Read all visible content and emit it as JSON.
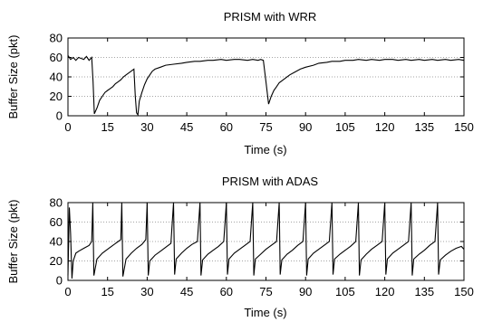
{
  "chart_data": [
    {
      "type": "line",
      "title": "PRISM with WRR",
      "xlabel": "Time (s)",
      "ylabel": "Buffer Size (pkt)",
      "xlim": [
        0,
        150
      ],
      "ylim": [
        0,
        80
      ],
      "xticks": [
        0,
        15,
        30,
        45,
        60,
        75,
        90,
        105,
        120,
        135,
        150
      ],
      "yticks": [
        0,
        20,
        40,
        60,
        80
      ],
      "grid": "horizontal dotted at y ticks",
      "legend": "none",
      "line_color": "#000000",
      "series": [
        {
          "x": [
            0,
            1,
            2,
            3,
            4,
            5,
            6,
            7,
            8,
            9,
            9.5,
            10,
            11,
            12,
            13,
            14,
            15,
            16,
            17,
            18,
            19,
            20,
            21,
            22,
            23,
            24,
            25,
            25.5,
            26,
            26.5,
            27,
            28,
            29,
            30,
            31,
            32,
            33,
            35,
            37,
            40,
            43,
            45,
            48,
            50,
            53,
            55,
            58,
            60,
            63,
            65,
            68,
            70,
            72,
            73,
            74,
            75,
            76,
            77,
            78,
            79,
            80,
            82,
            84,
            86,
            88,
            90,
            93,
            95,
            98,
            100,
            103,
            105,
            108,
            110,
            113,
            115,
            118,
            120,
            123,
            125,
            128,
            130,
            133,
            135,
            138,
            140,
            143,
            145,
            148,
            150
          ],
          "y": [
            62,
            58,
            60,
            57,
            60,
            59,
            58,
            61,
            57,
            60,
            35,
            2,
            8,
            16,
            20,
            24,
            26,
            28,
            30,
            33,
            35,
            37,
            40,
            42,
            44,
            46,
            48,
            20,
            3,
            1,
            15,
            24,
            32,
            38,
            42,
            46,
            48,
            50,
            52,
            53,
            54,
            55,
            56,
            56,
            57,
            57,
            58,
            57,
            58,
            58,
            57,
            58,
            57,
            58,
            57,
            35,
            12,
            20,
            26,
            30,
            34,
            38,
            42,
            45,
            48,
            50,
            52,
            54,
            55,
            56,
            56,
            57,
            57,
            58,
            57,
            58,
            57,
            58,
            58,
            57,
            58,
            57,
            58,
            57,
            58,
            57,
            58,
            57,
            58,
            57
          ]
        }
      ]
    },
    {
      "type": "line",
      "title": "PRISM with ADAS",
      "xlabel": "Time (s)",
      "ylabel": "Buffer Size (pkt)",
      "xlim": [
        0,
        150
      ],
      "ylim": [
        0,
        80
      ],
      "xticks": [
        0,
        15,
        30,
        45,
        60,
        75,
        90,
        105,
        120,
        135,
        150
      ],
      "yticks": [
        0,
        20,
        40,
        60,
        80
      ],
      "grid": "horizontal dotted at y ticks",
      "legend": "none",
      "line_color": "#000000",
      "series": [
        {
          "x": [
            0,
            0.5,
            1,
            1.5,
            2,
            3,
            4,
            6,
            8,
            9,
            9.4,
            9.8,
            11,
            13,
            15,
            17,
            19,
            20,
            20.4,
            20.8,
            22,
            24,
            26,
            28,
            29.5,
            30,
            30.4,
            31,
            33,
            35,
            37,
            39,
            40,
            40.4,
            41,
            43,
            45,
            47,
            49,
            50,
            50.4,
            51,
            53,
            55,
            57,
            59,
            60,
            60.4,
            61,
            63,
            65,
            67,
            69,
            70,
            70.4,
            71,
            73,
            75,
            77,
            79,
            80,
            80.4,
            81,
            83,
            85,
            87,
            89,
            90,
            90.4,
            91,
            93,
            95,
            97,
            99,
            100,
            100.4,
            101,
            103,
            105,
            107,
            109,
            110,
            110.4,
            111,
            113,
            115,
            117,
            119,
            120,
            120.4,
            121,
            123,
            125,
            127,
            129,
            130,
            130.4,
            131,
            133,
            135,
            137,
            139,
            140,
            140.4,
            141,
            143,
            145,
            147,
            149,
            150
          ],
          "y": [
            5,
            75,
            48,
            2,
            20,
            28,
            30,
            33,
            36,
            40,
            80,
            5,
            22,
            28,
            32,
            36,
            40,
            42,
            80,
            4,
            22,
            28,
            33,
            37,
            42,
            80,
            5,
            20,
            26,
            30,
            34,
            38,
            80,
            6,
            22,
            28,
            33,
            37,
            40,
            80,
            5,
            21,
            27,
            31,
            35,
            40,
            80,
            6,
            22,
            28,
            32,
            36,
            40,
            80,
            5,
            22,
            27,
            32,
            36,
            40,
            80,
            6,
            21,
            27,
            31,
            36,
            40,
            80,
            5,
            22,
            28,
            32,
            36,
            40,
            80,
            6,
            22,
            27,
            31,
            35,
            40,
            80,
            5,
            21,
            27,
            32,
            36,
            40,
            80,
            6,
            22,
            28,
            32,
            36,
            40,
            80,
            5,
            22,
            27,
            31,
            36,
            40,
            80,
            6,
            21,
            26,
            30,
            33,
            35,
            32
          ]
        }
      ]
    }
  ]
}
